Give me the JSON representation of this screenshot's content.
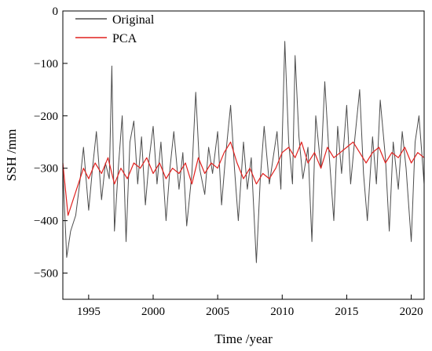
{
  "chart_data": {
    "type": "line",
    "xlabel": "Time /year",
    "ylabel": "SSH /mm",
    "xlim": [
      1993.0,
      2021.0
    ],
    "ylim": [
      -550,
      0
    ],
    "xticks": [
      1995,
      2000,
      2005,
      2010,
      2015,
      2020
    ],
    "yticks": [
      0,
      -100,
      -200,
      -300,
      -400,
      -500
    ],
    "legend_position": "top-left",
    "grid": false,
    "series": [
      {
        "name": "Original",
        "color": "#4d4d4d",
        "x": [
          1993.0,
          1993.3,
          1993.6,
          1994.0,
          1994.3,
          1994.6,
          1995.0,
          1995.3,
          1995.6,
          1996.0,
          1996.3,
          1996.6,
          1996.8,
          1997.0,
          1997.3,
          1997.6,
          1997.9,
          1998.2,
          1998.5,
          1998.8,
          1999.1,
          1999.4,
          1999.7,
          2000.0,
          2000.3,
          2000.6,
          2001.0,
          2001.3,
          2001.6,
          2002.0,
          2002.3,
          2002.6,
          2003.0,
          2003.3,
          2003.6,
          2004.0,
          2004.3,
          2004.6,
          2005.0,
          2005.3,
          2005.6,
          2006.0,
          2006.3,
          2006.6,
          2007.0,
          2007.3,
          2007.6,
          2008.0,
          2008.3,
          2008.6,
          2009.0,
          2009.3,
          2009.6,
          2009.9,
          2010.2,
          2010.5,
          2010.8,
          2011.0,
          2011.3,
          2011.6,
          2012.0,
          2012.3,
          2012.6,
          2013.0,
          2013.3,
          2013.6,
          2014.0,
          2014.3,
          2014.6,
          2015.0,
          2015.3,
          2015.6,
          2016.0,
          2016.3,
          2016.6,
          2017.0,
          2017.3,
          2017.6,
          2018.0,
          2018.3,
          2018.6,
          2019.0,
          2019.3,
          2019.6,
          2020.0,
          2020.3,
          2020.6,
          2021.0
        ],
        "y": [
          -300,
          -470,
          -420,
          -390,
          -330,
          -260,
          -380,
          -300,
          -230,
          -360,
          -290,
          -320,
          -105,
          -420,
          -300,
          -200,
          -440,
          -250,
          -210,
          -330,
          -240,
          -370,
          -280,
          -220,
          -330,
          -250,
          -400,
          -300,
          -230,
          -340,
          -270,
          -410,
          -310,
          -155,
          -300,
          -350,
          -260,
          -310,
          -230,
          -370,
          -280,
          -180,
          -300,
          -400,
          -250,
          -340,
          -280,
          -480,
          -320,
          -220,
          -330,
          -280,
          -230,
          -340,
          -58,
          -250,
          -330,
          -85,
          -240,
          -320,
          -260,
          -440,
          -200,
          -300,
          -135,
          -260,
          -400,
          -220,
          -310,
          -180,
          -330,
          -250,
          -150,
          -310,
          -400,
          -240,
          -330,
          -170,
          -280,
          -420,
          -250,
          -340,
          -230,
          -300,
          -440,
          -250,
          -200,
          -330
        ]
      },
      {
        "name": "PCA",
        "color": "#e0211f",
        "x": [
          1993.0,
          1993.4,
          1993.8,
          1994.2,
          1994.6,
          1995.0,
          1995.5,
          1996.0,
          1996.5,
          1997.0,
          1997.5,
          1998.0,
          1998.5,
          1999.0,
          1999.5,
          2000.0,
          2000.5,
          2001.0,
          2001.5,
          2002.0,
          2002.5,
          2003.0,
          2003.5,
          2004.0,
          2004.5,
          2005.0,
          2005.5,
          2006.0,
          2006.5,
          2007.0,
          2007.5,
          2008.0,
          2008.5,
          2009.0,
          2009.5,
          2010.0,
          2010.5,
          2011.0,
          2011.5,
          2012.0,
          2012.5,
          2013.0,
          2013.5,
          2014.0,
          2014.5,
          2015.0,
          2015.5,
          2016.0,
          2016.5,
          2017.0,
          2017.5,
          2018.0,
          2018.5,
          2019.0,
          2019.5,
          2020.0,
          2020.5,
          2021.0
        ],
        "y": [
          -290,
          -390,
          -360,
          -330,
          -300,
          -320,
          -290,
          -310,
          -280,
          -330,
          -300,
          -320,
          -290,
          -300,
          -280,
          -310,
          -290,
          -320,
          -300,
          -310,
          -290,
          -330,
          -280,
          -310,
          -290,
          -300,
          -270,
          -250,
          -290,
          -320,
          -300,
          -330,
          -310,
          -320,
          -300,
          -270,
          -260,
          -280,
          -250,
          -290,
          -270,
          -300,
          -260,
          -280,
          -270,
          -260,
          -250,
          -270,
          -290,
          -270,
          -260,
          -290,
          -270,
          -280,
          -260,
          -290,
          -270,
          -280
        ]
      }
    ]
  }
}
